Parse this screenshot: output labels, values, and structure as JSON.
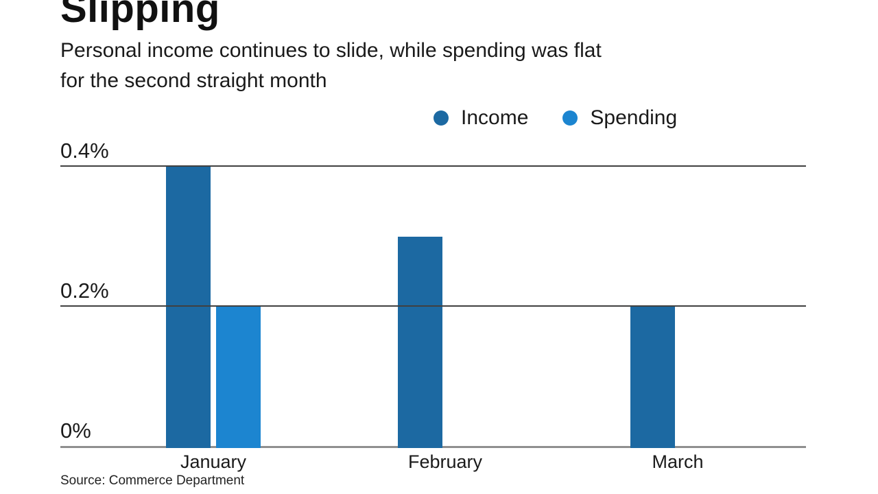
{
  "chart": {
    "title": "Slipping",
    "subtitle_line1": "Personal income continues to slide, while spending was flat",
    "subtitle_line2": "for the second straight month",
    "source": "Source: Commerce Department"
  },
  "chart_data": {
    "type": "bar",
    "title": "Slipping",
    "subtitle": "Personal income continues to slide, while spending was flat for the second straight month",
    "categories": [
      "January",
      "February",
      "March"
    ],
    "series": [
      {
        "name": "Income",
        "color": "#1c69a2",
        "values": [
          0.4,
          0.3,
          0.2
        ]
      },
      {
        "name": "Spending",
        "color": "#1c85d0",
        "values": [
          0.2,
          0.0,
          0.0
        ]
      }
    ],
    "ylabel": "",
    "xlabel": "",
    "ylim": [
      0,
      0.4
    ],
    "yticks": [
      {
        "label": "0.4%",
        "value": 0.4
      },
      {
        "label": "0.2%",
        "value": 0.2
      },
      {
        "label": "0%",
        "value": 0.0
      }
    ],
    "unit": "%",
    "grid": true,
    "legend_position": "top-right",
    "source": "Source: Commerce Department",
    "colors": {
      "income": "#1c69a2",
      "spending": "#1c85d0",
      "gridline": "#404040",
      "baseline": "#8f8f8f"
    }
  }
}
